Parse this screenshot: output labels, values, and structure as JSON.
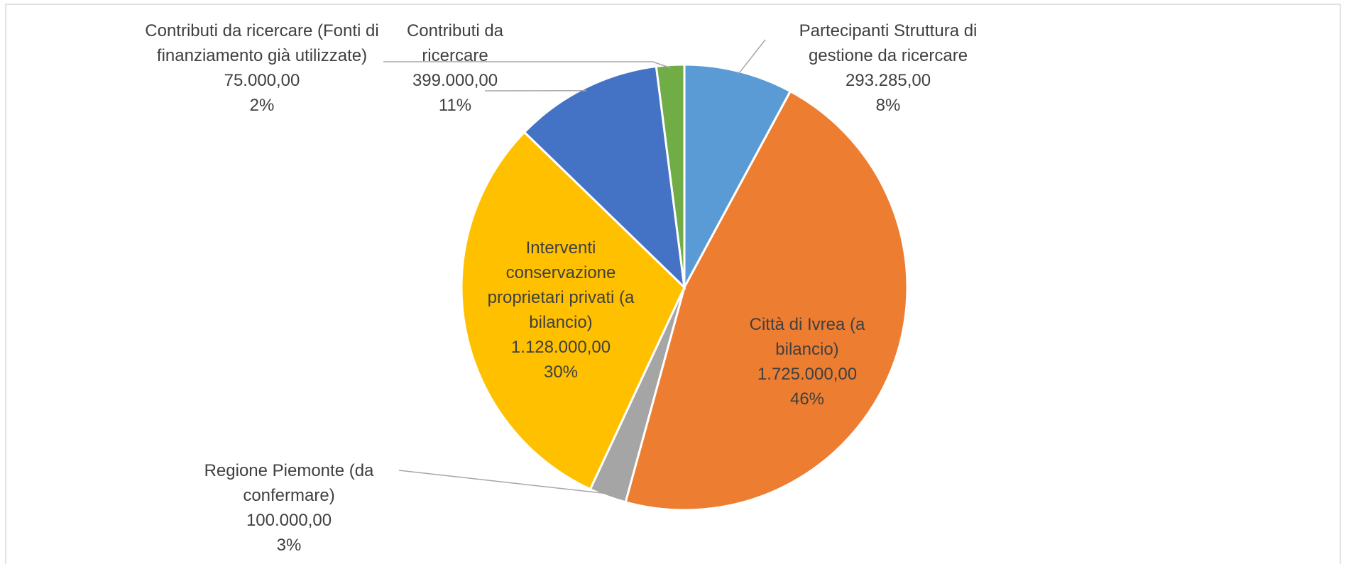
{
  "chart_data": {
    "type": "pie",
    "categories": [
      "Partecipanti Struttura di gestione da ricercare",
      "Città di Ivrea (a bilancio)",
      "Regione Piemonte (da confermare)",
      "Interventi conservazione proprietari privati (a bilancio)",
      "Contributi da ricercare",
      "Contributi da ricercare (Fonti di finanziamento già utilizzate)"
    ],
    "values": [
      293285,
      1725000,
      100000,
      1128000,
      399000,
      75000
    ],
    "value_labels": [
      "293.285,00",
      "1.725.000,00",
      "100.000,00",
      "1.128.000,00",
      "399.000,00",
      "75.000,00"
    ],
    "percent_labels": [
      "8%",
      "46%",
      "3%",
      "30%",
      "11%",
      "2%"
    ],
    "colors": [
      "#5b9bd5",
      "#ed7d31",
      "#a5a5a5",
      "#ffc000",
      "#4472c4",
      "#70ad47"
    ]
  }
}
